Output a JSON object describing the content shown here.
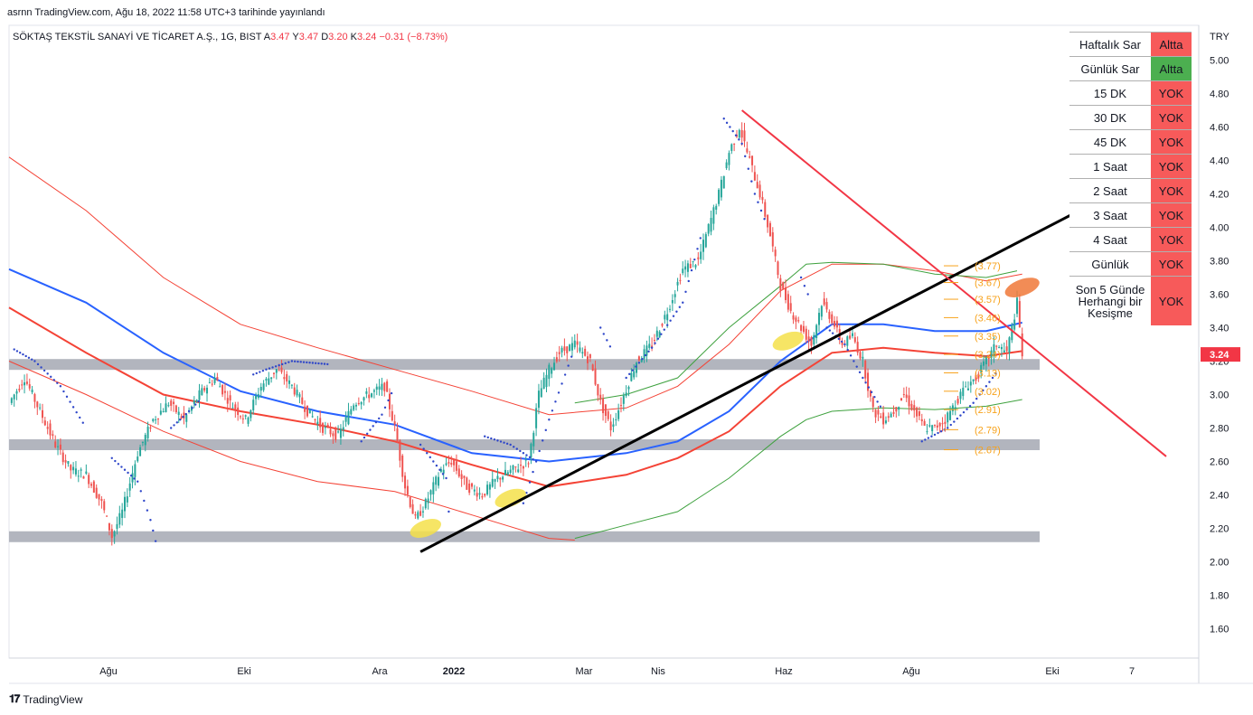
{
  "header": {
    "published": "asrnn TradingView.com, Ağu 18, 2022 11:58 UTC+3 tarihinde yayınlandı"
  },
  "symbol_line": {
    "name": "SÖKTAŞ TEKSTİL SANAYİ VE TİCARET A.Ş., 1G, BIST",
    "o_label": "A",
    "o_value": "3.47",
    "h_label": "Y",
    "h_value": "3.47",
    "l_label": "D",
    "l_value": "3.20",
    "c_label": "K",
    "c_value": "3.24",
    "change": "−0.31 (−8.73%)"
  },
  "footer": {
    "brand": "TradingView"
  },
  "signal_table": {
    "rows": [
      {
        "label": "Haftalık Sar",
        "value": "Altta",
        "color": "#f75a5a"
      },
      {
        "label": "Günlük Sar",
        "value": "Altta",
        "color": "#4caf50"
      },
      {
        "label": "15 DK",
        "value": "YOK",
        "color": "#f75a5a"
      },
      {
        "label": "30 DK",
        "value": "YOK",
        "color": "#f75a5a"
      },
      {
        "label": "45 DK",
        "value": "YOK",
        "color": "#f75a5a"
      },
      {
        "label": "1 Saat",
        "value": "YOK",
        "color": "#f75a5a"
      },
      {
        "label": "2 Saat",
        "value": "YOK",
        "color": "#f75a5a"
      },
      {
        "label": "3 Saat",
        "value": "YOK",
        "color": "#f75a5a"
      },
      {
        "label": "4 Saat",
        "value": "YOK",
        "color": "#f75a5a"
      },
      {
        "label": "Günlük",
        "value": "YOK",
        "color": "#f75a5a"
      },
      {
        "label": "Son 5 Günde\nHerhangi bir\nKesişme",
        "value": "YOK",
        "color": "#f75a5a"
      }
    ]
  },
  "chart_data": {
    "type": "candlestick",
    "currency": "TRY",
    "y_ticks": [
      "1.60",
      "1.80",
      "2.00",
      "2.20",
      "2.40",
      "2.60",
      "2.80",
      "3.00",
      "3.20",
      "3.40",
      "3.60",
      "3.80",
      "4.00",
      "4.20",
      "4.40",
      "4.60",
      "4.80",
      "5.00"
    ],
    "ylim": [
      1.45,
      5.1
    ],
    "x_ticks": [
      "Ağu",
      "Eki",
      "Ara",
      "2022",
      "Mar",
      "Nis",
      "Haz",
      "Ağu",
      "Eki",
      "7"
    ],
    "last_price": "3.24",
    "level_labels": [
      "(3.77)",
      "(3.67)",
      "(3.57)",
      "(3.46)",
      "(3.35)",
      "(3.24)",
      "(3.13)",
      "(3.02)",
      "(2.91)",
      "(2.79)",
      "(2.67)"
    ],
    "level_values": [
      3.77,
      3.67,
      3.57,
      3.46,
      3.35,
      3.24,
      3.13,
      3.02,
      2.91,
      2.79,
      2.67
    ],
    "support_zones": [
      3.18,
      2.7,
      2.15
    ],
    "price_path": [
      [
        0,
        2.95
      ],
      [
        6,
        3.1
      ],
      [
        12,
        2.9
      ],
      [
        18,
        2.7
      ],
      [
        24,
        2.55
      ],
      [
        30,
        2.52
      ],
      [
        36,
        2.35
      ],
      [
        40,
        2.15
      ],
      [
        44,
        2.3
      ],
      [
        50,
        2.65
      ],
      [
        56,
        2.85
      ],
      [
        62,
        2.95
      ],
      [
        68,
        2.85
      ],
      [
        74,
        3.0
      ],
      [
        80,
        3.1
      ],
      [
        86,
        2.95
      ],
      [
        92,
        2.85
      ],
      [
        98,
        3.05
      ],
      [
        104,
        3.15
      ],
      [
        110,
        3.05
      ],
      [
        116,
        2.9
      ],
      [
        122,
        2.8
      ],
      [
        128,
        2.75
      ],
      [
        134,
        2.95
      ],
      [
        140,
        3.0
      ],
      [
        146,
        3.05
      ],
      [
        150,
        2.8
      ],
      [
        154,
        2.45
      ],
      [
        158,
        2.25
      ],
      [
        162,
        2.35
      ],
      [
        168,
        2.55
      ],
      [
        172,
        2.6
      ],
      [
        178,
        2.45
      ],
      [
        184,
        2.4
      ],
      [
        190,
        2.5
      ],
      [
        196,
        2.55
      ],
      [
        202,
        2.6
      ],
      [
        206,
        3.0
      ],
      [
        210,
        3.15
      ],
      [
        214,
        3.25
      ],
      [
        220,
        3.3
      ],
      [
        226,
        3.2
      ],
      [
        230,
        2.95
      ],
      [
        234,
        2.8
      ],
      [
        238,
        2.95
      ],
      [
        244,
        3.2
      ],
      [
        250,
        3.3
      ],
      [
        256,
        3.5
      ],
      [
        262,
        3.75
      ],
      [
        268,
        3.8
      ],
      [
        272,
        4.0
      ],
      [
        276,
        4.2
      ],
      [
        280,
        4.45
      ],
      [
        284,
        4.6
      ],
      [
        288,
        4.4
      ],
      [
        292,
        4.2
      ],
      [
        296,
        3.95
      ],
      [
        300,
        3.65
      ],
      [
        304,
        3.5
      ],
      [
        308,
        3.4
      ],
      [
        312,
        3.3
      ],
      [
        316,
        3.55
      ],
      [
        320,
        3.45
      ],
      [
        324,
        3.3
      ],
      [
        328,
        3.35
      ],
      [
        332,
        3.2
      ],
      [
        336,
        2.9
      ],
      [
        340,
        2.85
      ],
      [
        344,
        2.9
      ],
      [
        348,
        3.0
      ],
      [
        352,
        2.9
      ],
      [
        356,
        2.8
      ],
      [
        360,
        2.8
      ],
      [
        364,
        2.85
      ],
      [
        368,
        2.95
      ],
      [
        372,
        3.05
      ],
      [
        376,
        3.1
      ],
      [
        380,
        3.2
      ],
      [
        384,
        3.3
      ],
      [
        388,
        3.25
      ],
      [
        392,
        3.55
      ],
      [
        394,
        3.24
      ]
    ],
    "lines": {
      "blue_ma": [
        [
          0,
          3.75
        ],
        [
          30,
          3.55
        ],
        [
          60,
          3.25
        ],
        [
          90,
          3.02
        ],
        [
          120,
          2.9
        ],
        [
          150,
          2.82
        ],
        [
          180,
          2.65
        ],
        [
          210,
          2.6
        ],
        [
          240,
          2.65
        ],
        [
          260,
          2.72
        ],
        [
          280,
          2.9
        ],
        [
          300,
          3.2
        ],
        [
          320,
          3.42
        ],
        [
          340,
          3.42
        ],
        [
          360,
          3.38
        ],
        [
          380,
          3.38
        ],
        [
          394,
          3.43
        ]
      ],
      "red_ma": [
        [
          0,
          3.52
        ],
        [
          30,
          3.25
        ],
        [
          60,
          3.0
        ],
        [
          90,
          2.9
        ],
        [
          120,
          2.82
        ],
        [
          150,
          2.72
        ],
        [
          180,
          2.58
        ],
        [
          210,
          2.45
        ],
        [
          240,
          2.52
        ],
        [
          260,
          2.62
        ],
        [
          280,
          2.78
        ],
        [
          300,
          3.05
        ],
        [
          320,
          3.25
        ],
        [
          340,
          3.28
        ],
        [
          360,
          3.25
        ],
        [
          380,
          3.23
        ],
        [
          394,
          3.26
        ]
      ],
      "red_upper": [
        [
          0,
          4.42
        ],
        [
          30,
          4.1
        ],
        [
          60,
          3.7
        ],
        [
          90,
          3.42
        ],
        [
          120,
          3.28
        ],
        [
          150,
          3.15
        ],
        [
          180,
          3.02
        ],
        [
          210,
          2.88
        ],
        [
          240,
          2.92
        ],
        [
          260,
          3.05
        ],
        [
          280,
          3.3
        ],
        [
          300,
          3.62
        ],
        [
          320,
          3.78
        ],
        [
          340,
          3.78
        ],
        [
          360,
          3.74
        ],
        [
          380,
          3.68
        ],
        [
          394,
          3.72
        ]
      ],
      "red_lower": [
        [
          0,
          3.2
        ],
        [
          30,
          3.0
        ],
        [
          60,
          2.78
        ],
        [
          90,
          2.6
        ],
        [
          120,
          2.48
        ],
        [
          150,
          2.42
        ],
        [
          180,
          2.28
        ],
        [
          210,
          2.14
        ],
        [
          220,
          2.13
        ]
      ],
      "green_upper": [
        [
          220,
          2.95
        ],
        [
          240,
          3.0
        ],
        [
          260,
          3.1
        ],
        [
          280,
          3.4
        ],
        [
          300,
          3.65
        ],
        [
          310,
          3.78
        ],
        [
          320,
          3.79
        ],
        [
          340,
          3.78
        ],
        [
          360,
          3.72
        ],
        [
          380,
          3.7
        ],
        [
          392,
          3.74
        ]
      ],
      "green_lower": [
        [
          220,
          2.14
        ],
        [
          240,
          2.22
        ],
        [
          260,
          2.3
        ],
        [
          280,
          2.5
        ],
        [
          300,
          2.75
        ],
        [
          310,
          2.85
        ],
        [
          320,
          2.9
        ],
        [
          340,
          2.92
        ],
        [
          360,
          2.91
        ],
        [
          380,
          2.93
        ],
        [
          394,
          2.97
        ]
      ]
    },
    "trendlines": {
      "black_uptrend": [
        [
          160,
          2.06
        ],
        [
          420,
          4.13
        ]
      ],
      "red_downtrend": [
        [
          285,
          4.7
        ],
        [
          450,
          2.63
        ]
      ]
    },
    "sar_segments": [
      [
        [
          2,
          3.27
        ],
        [
          10,
          3.2
        ],
        [
          20,
          3.05
        ],
        [
          30,
          2.8
        ]
      ],
      [
        [
          40,
          2.62
        ],
        [
          50,
          2.48
        ],
        [
          55,
          2.25
        ],
        [
          58,
          2.06
        ]
      ],
      [
        [
          63,
          2.8
        ],
        [
          70,
          2.9
        ],
        [
          75,
          2.98
        ]
      ],
      [
        [
          95,
          3.12
        ],
        [
          100,
          3.15
        ],
        [
          110,
          3.2
        ],
        [
          125,
          3.18
        ]
      ],
      [
        [
          137,
          2.72
        ],
        [
          145,
          2.88
        ],
        [
          150,
          3.05
        ]
      ],
      [
        [
          160,
          2.7
        ],
        [
          170,
          2.5
        ],
        [
          172,
          2.1
        ]
      ],
      [
        [
          185,
          2.75
        ],
        [
          195,
          2.7
        ],
        [
          205,
          2.6
        ]
      ],
      [
        [
          200,
          2.35
        ],
        [
          210,
          2.85
        ],
        [
          220,
          3.28
        ]
      ],
      [
        [
          230,
          3.4
        ],
        [
          235,
          3.25
        ]
      ],
      [
        [
          240,
          3.1
        ],
        [
          250,
          3.28
        ],
        [
          262,
          3.55
        ],
        [
          270,
          4.0
        ]
      ],
      [
        [
          278,
          4.65
        ],
        [
          285,
          4.5
        ],
        [
          290,
          4.2
        ],
        [
          295,
          4.0
        ]
      ],
      [
        [
          308,
          3.7
        ],
        [
          312,
          3.55
        ]
      ],
      [
        [
          318,
          3.4
        ],
        [
          325,
          3.3
        ],
        [
          332,
          3.1
        ],
        [
          340,
          2.9
        ]
      ],
      [
        [
          355,
          2.72
        ],
        [
          365,
          2.8
        ],
        [
          375,
          2.95
        ],
        [
          385,
          3.15
        ]
      ]
    ],
    "highlights": [
      {
        "x": 162,
        "y": 2.2,
        "color": "#f5e04a"
      },
      {
        "x": 195,
        "y": 2.38,
        "color": "#f5e04a"
      },
      {
        "x": 303,
        "y": 3.32,
        "color": "#f5e04a"
      },
      {
        "x": 394,
        "y": 3.64,
        "color": "#f07838"
      }
    ],
    "colors": {
      "up": "#26a69a",
      "down": "#ef5350",
      "blue": "#2962ff",
      "red": "#f44336",
      "green": "#3ea13e",
      "sar": "#2e46c9",
      "levels": "#f7a21b",
      "zone": "#b2b5be"
    }
  }
}
